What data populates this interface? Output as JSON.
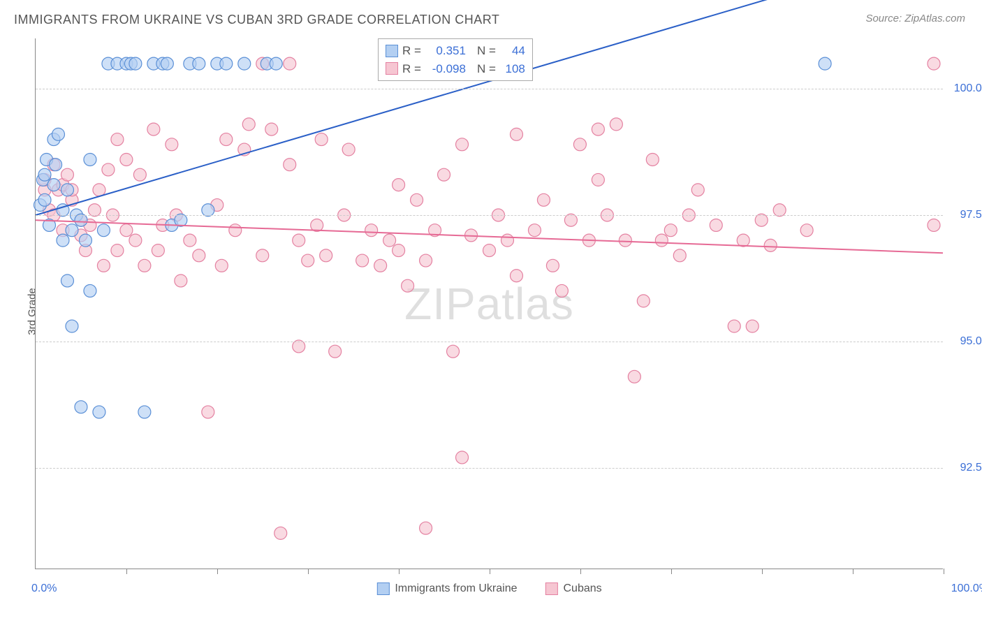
{
  "title": "IMMIGRANTS FROM UKRAINE VS CUBAN 3RD GRADE CORRELATION CHART",
  "source": "Source: ZipAtlas.com",
  "watermark_a": "ZIP",
  "watermark_b": "atlas",
  "chart": {
    "type": "scatter",
    "y_axis_label": "3rd Grade",
    "x_axis": {
      "min": 0,
      "max": 100,
      "ticks": [
        10,
        20,
        30,
        40,
        50,
        60,
        70,
        80,
        90,
        100
      ],
      "min_label": "0.0%",
      "max_label": "100.0%"
    },
    "y_axis": {
      "min": 90.5,
      "max": 101,
      "gridlines": [
        92.5,
        95.0,
        97.5,
        100.0
      ],
      "labels": [
        "92.5%",
        "95.0%",
        "97.5%",
        "100.0%"
      ]
    },
    "colors": {
      "series_a_fill": "#b3cff2",
      "series_a_stroke": "#5a8fd6",
      "series_b_fill": "#f6c6d2",
      "series_b_stroke": "#e481a1",
      "line_a": "#2a5fc7",
      "line_b": "#e66a95",
      "grid": "#cccccc",
      "axis": "#888888",
      "tick_text": "#3b6fd6",
      "title_text": "#555555",
      "background": "#ffffff"
    },
    "marker_radius": 9,
    "marker_opacity": 0.65,
    "line_width": 2,
    "regression": {
      "a": {
        "R_label": "R =",
        "R": "0.351",
        "N_label": "N =",
        "N": "44",
        "y_at_x0": 97.5,
        "y_at_x100": 102.8
      },
      "b": {
        "R_label": "R =",
        "R": "-0.098",
        "N_label": "N =",
        "N": "108",
        "y_at_x0": 97.4,
        "y_at_x100": 96.75
      }
    },
    "legend_bottom": {
      "a": "Immigrants from Ukraine",
      "b": "Cubans"
    },
    "series_a_points": [
      [
        0.5,
        97.7
      ],
      [
        0.8,
        98.2
      ],
      [
        1,
        97.8
      ],
      [
        1,
        98.3
      ],
      [
        1.2,
        98.6
      ],
      [
        1.5,
        97.3
      ],
      [
        2,
        99.0
      ],
      [
        2,
        98.1
      ],
      [
        2.2,
        98.5
      ],
      [
        2.5,
        99.1
      ],
      [
        3,
        97.0
      ],
      [
        3,
        97.6
      ],
      [
        3.5,
        96.2
      ],
      [
        3.5,
        98.0
      ],
      [
        4,
        97.2
      ],
      [
        4,
        95.3
      ],
      [
        4.5,
        97.5
      ],
      [
        5,
        93.7
      ],
      [
        5,
        97.4
      ],
      [
        5.5,
        97.0
      ],
      [
        6,
        98.6
      ],
      [
        6,
        96.0
      ],
      [
        7,
        93.6
      ],
      [
        7.5,
        97.2
      ],
      [
        8,
        100.5
      ],
      [
        9,
        100.5
      ],
      [
        10,
        100.5
      ],
      [
        10.5,
        100.5
      ],
      [
        11,
        100.5
      ],
      [
        12,
        93.6
      ],
      [
        13,
        100.5
      ],
      [
        14,
        100.5
      ],
      [
        14.5,
        100.5
      ],
      [
        15,
        97.3
      ],
      [
        16,
        97.4
      ],
      [
        17,
        100.5
      ],
      [
        18,
        100.5
      ],
      [
        19,
        97.6
      ],
      [
        20,
        100.5
      ],
      [
        21,
        100.5
      ],
      [
        23,
        100.5
      ],
      [
        25.5,
        100.5
      ],
      [
        26.5,
        100.5
      ],
      [
        87,
        100.5
      ]
    ],
    "series_b_points": [
      [
        1,
        98.0
      ],
      [
        1,
        98.2
      ],
      [
        1.5,
        97.6
      ],
      [
        2,
        98.5
      ],
      [
        2,
        97.5
      ],
      [
        2.5,
        98.0
      ],
      [
        3,
        98.1
      ],
      [
        3,
        97.2
      ],
      [
        3.5,
        98.3
      ],
      [
        4,
        97.8
      ],
      [
        4,
        98.0
      ],
      [
        5,
        97.1
      ],
      [
        5,
        97.4
      ],
      [
        5.5,
        96.8
      ],
      [
        6,
        97.3
      ],
      [
        6.5,
        97.6
      ],
      [
        7,
        98.0
      ],
      [
        7.5,
        96.5
      ],
      [
        8,
        98.4
      ],
      [
        8.5,
        97.5
      ],
      [
        9,
        99.0
      ],
      [
        9,
        96.8
      ],
      [
        10,
        97.2
      ],
      [
        10,
        98.6
      ],
      [
        11,
        97.0
      ],
      [
        11.5,
        98.3
      ],
      [
        12,
        96.5
      ],
      [
        13,
        99.2
      ],
      [
        13.5,
        96.8
      ],
      [
        14,
        97.3
      ],
      [
        15,
        98.9
      ],
      [
        15.5,
        97.5
      ],
      [
        16,
        96.2
      ],
      [
        17,
        97.0
      ],
      [
        18,
        96.7
      ],
      [
        19,
        93.6
      ],
      [
        20,
        97.7
      ],
      [
        20.5,
        96.5
      ],
      [
        21,
        99.0
      ],
      [
        22,
        97.2
      ],
      [
        23,
        98.8
      ],
      [
        23.5,
        99.3
      ],
      [
        25,
        96.7
      ],
      [
        25,
        100.5
      ],
      [
        26,
        99.2
      ],
      [
        27,
        91.2
      ],
      [
        28,
        100.5
      ],
      [
        28,
        98.5
      ],
      [
        29,
        94.9
      ],
      [
        29,
        97.0
      ],
      [
        30,
        96.6
      ],
      [
        31,
        97.3
      ],
      [
        31.5,
        99.0
      ],
      [
        32,
        96.7
      ],
      [
        33,
        94.8
      ],
      [
        34,
        97.5
      ],
      [
        34.5,
        98.8
      ],
      [
        36,
        96.6
      ],
      [
        37,
        97.2
      ],
      [
        38,
        96.5
      ],
      [
        39,
        97.0
      ],
      [
        40,
        98.1
      ],
      [
        40,
        96.8
      ],
      [
        41,
        96.1
      ],
      [
        42,
        97.8
      ],
      [
        43,
        91.3
      ],
      [
        43,
        96.6
      ],
      [
        44,
        97.2
      ],
      [
        45,
        98.3
      ],
      [
        46,
        94.8
      ],
      [
        47,
        98.9
      ],
      [
        47,
        92.7
      ],
      [
        48,
        97.1
      ],
      [
        50,
        96.8
      ],
      [
        51,
        97.5
      ],
      [
        52,
        97.0
      ],
      [
        53,
        99.1
      ],
      [
        53,
        96.3
      ],
      [
        55,
        97.2
      ],
      [
        56,
        97.8
      ],
      [
        57,
        96.5
      ],
      [
        58,
        96.0
      ],
      [
        59,
        97.4
      ],
      [
        60,
        98.9
      ],
      [
        61,
        97.0
      ],
      [
        62,
        99.2
      ],
      [
        62,
        98.2
      ],
      [
        63,
        97.5
      ],
      [
        64,
        99.3
      ],
      [
        65,
        97.0
      ],
      [
        66,
        94.3
      ],
      [
        67,
        95.8
      ],
      [
        68,
        98.6
      ],
      [
        69,
        97.0
      ],
      [
        70,
        97.2
      ],
      [
        71,
        96.7
      ],
      [
        72,
        97.5
      ],
      [
        73,
        98.0
      ],
      [
        75,
        97.3
      ],
      [
        77,
        95.3
      ],
      [
        78,
        97.0
      ],
      [
        79,
        95.3
      ],
      [
        80,
        97.4
      ],
      [
        81,
        96.9
      ],
      [
        82,
        97.6
      ],
      [
        85,
        97.2
      ],
      [
        99,
        100.5
      ],
      [
        99,
        97.3
      ]
    ]
  }
}
